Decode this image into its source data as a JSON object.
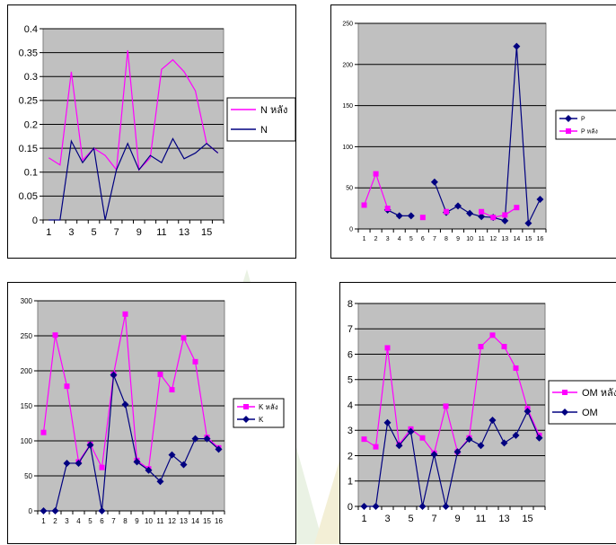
{
  "chart_data": [
    {
      "type": "line",
      "title": "",
      "x": [
        1,
        2,
        3,
        4,
        5,
        6,
        7,
        8,
        9,
        10,
        11,
        12,
        13,
        14,
        15,
        16
      ],
      "x_tick_labels": [
        "1",
        "3",
        "5",
        "7",
        "9",
        "11",
        "13",
        "15"
      ],
      "ylim": [
        0,
        0.4
      ],
      "y_tick_labels": [
        "0",
        "0.05",
        "0.1",
        "0.15",
        "0.2",
        "0.25",
        "0.3",
        "0.35",
        "0.4"
      ],
      "grid": true,
      "legend_position": "right",
      "series": [
        {
          "name": "N หลัง",
          "color": "#ff00ff",
          "marker": "none",
          "values": [
            0.13,
            0.115,
            0.31,
            0.125,
            0.15,
            0.135,
            0.105,
            0.355,
            0.105,
            0.13,
            0.315,
            0.335,
            0.31,
            0.27,
            0.16,
            0.14
          ]
        },
        {
          "name": "N",
          "color": "#000080",
          "marker": "none",
          "values": [
            0,
            0,
            0.165,
            0.12,
            0.15,
            0,
            0.105,
            0.16,
            0.105,
            0.135,
            0.12,
            0.17,
            0.128,
            0.14,
            0.16,
            0.14
          ]
        }
      ]
    },
    {
      "type": "line",
      "title": "",
      "x": [
        1,
        2,
        3,
        4,
        5,
        6,
        7,
        8,
        9,
        10,
        11,
        12,
        13,
        14,
        15,
        16
      ],
      "x_tick_labels": [
        "1",
        "2",
        "3",
        "4",
        "5",
        "6",
        "7",
        "8",
        "9",
        "10",
        "11",
        "12",
        "13",
        "14",
        "15",
        "16"
      ],
      "ylim": [
        0,
        250
      ],
      "y_tick_labels": [
        "0",
        "50",
        "100",
        "150",
        "200",
        "250"
      ],
      "grid": true,
      "legend_position": "right",
      "series": [
        {
          "name": "P",
          "color": "#000080",
          "marker": "diamond",
          "values": [
            null,
            null,
            23,
            16,
            16,
            null,
            57,
            20,
            28,
            19,
            15,
            14,
            10,
            222,
            7,
            36
          ]
        },
        {
          "name": "P หลัง",
          "color": "#ff00ff",
          "marker": "square",
          "values": [
            29,
            67,
            25,
            null,
            null,
            14,
            null,
            21,
            null,
            null,
            21,
            14,
            17,
            26,
            null,
            null
          ]
        }
      ]
    },
    {
      "type": "line",
      "title": "",
      "x": [
        1,
        2,
        3,
        4,
        5,
        6,
        7,
        8,
        9,
        10,
        11,
        12,
        13,
        14,
        15,
        16
      ],
      "x_tick_labels": [
        "1",
        "2",
        "3",
        "4",
        "5",
        "6",
        "7",
        "8",
        "9",
        "10",
        "11",
        "12",
        "13",
        "14",
        "15",
        "16"
      ],
      "ylim": [
        0,
        300
      ],
      "y_tick_labels": [
        "0",
        "50",
        "100",
        "150",
        "200",
        "250",
        "300"
      ],
      "grid": true,
      "legend_position": "right",
      "series": [
        {
          "name": "K หลัง",
          "color": "#ff00ff",
          "marker": "square",
          "values": [
            112,
            251,
            178,
            70,
            95,
            62,
            195,
            281,
            72,
            60,
            195,
            173,
            247,
            213,
            105,
            90
          ]
        },
        {
          "name": "K",
          "color": "#000080",
          "marker": "diamond",
          "values": [
            0,
            0,
            68,
            68,
            94,
            0,
            194,
            152,
            70,
            58,
            42,
            80,
            66,
            103,
            103,
            88
          ]
        }
      ]
    },
    {
      "type": "line",
      "title": "",
      "x": [
        1,
        2,
        3,
        4,
        5,
        6,
        7,
        8,
        9,
        10,
        11,
        12,
        13,
        14,
        15,
        16
      ],
      "x_tick_labels": [
        "1",
        "3",
        "5",
        "7",
        "9",
        "11",
        "13",
        "15"
      ],
      "ylim": [
        0,
        8
      ],
      "y_tick_labels": [
        "0",
        "1",
        "2",
        "3",
        "4",
        "5",
        "6",
        "7",
        "8"
      ],
      "grid": true,
      "legend_position": "right",
      "series": [
        {
          "name": "OM หลัง",
          "color": "#ff00ff",
          "marker": "square",
          "values": [
            2.65,
            2.35,
            6.25,
            2.45,
            3.05,
            2.7,
            2.1,
            3.95,
            2.15,
            2.7,
            6.3,
            6.75,
            6.3,
            5.45,
            3.85,
            2.8
          ]
        },
        {
          "name": "OM",
          "color": "#000080",
          "marker": "diamond",
          "values": [
            0,
            0,
            3.3,
            2.4,
            2.95,
            0,
            2.05,
            0,
            2.15,
            2.65,
            2.4,
            3.4,
            2.5,
            2.8,
            3.75,
            2.7
          ]
        }
      ]
    }
  ]
}
